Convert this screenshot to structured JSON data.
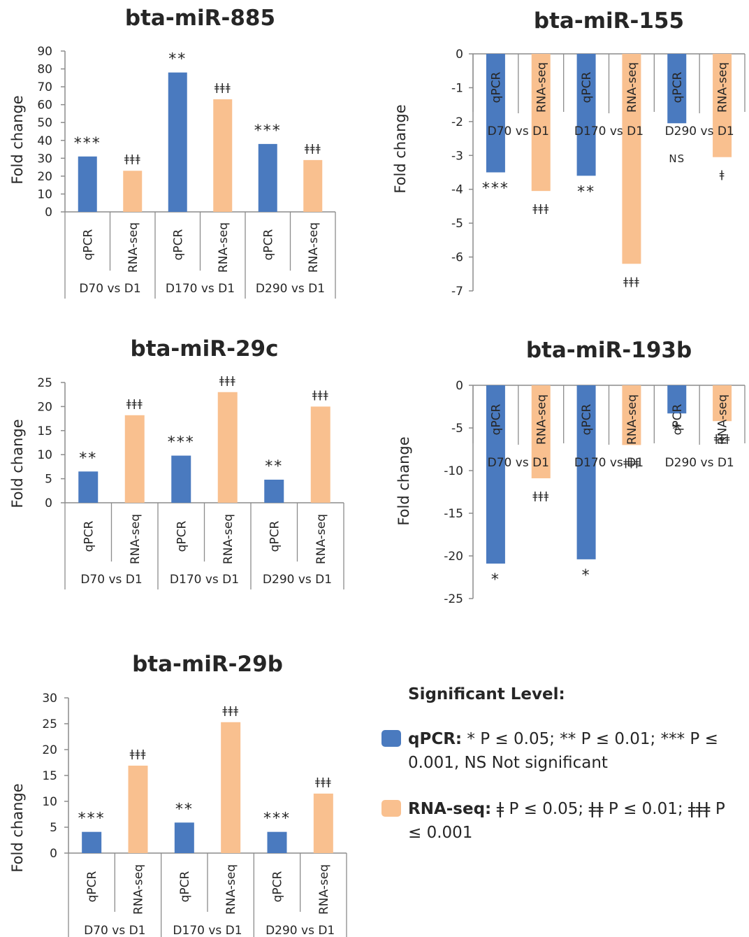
{
  "colors": {
    "qpcr": "#4a7abf",
    "rnaseq": "#f9c08f",
    "axis": "#8c8c8c",
    "text": "#262626"
  },
  "chart_data": [
    {
      "type": "bar",
      "title": "bta-miR-885",
      "ylabel": "Fold change",
      "ylim": [
        0,
        90
      ],
      "yticks": [
        0,
        10,
        20,
        30,
        40,
        50,
        60,
        70,
        80,
        90
      ],
      "groups": [
        "D70 vs D1",
        "D170 vs D1",
        "D290 vs D1"
      ],
      "series": [
        {
          "name": "qPCR",
          "values": [
            31,
            78,
            38
          ],
          "significance": [
            "***",
            "**",
            "***"
          ]
        },
        {
          "name": "RNA-seq",
          "values": [
            23,
            63,
            29
          ],
          "significance": [
            "ǂǂǂ",
            "ǂǂǂ",
            "ǂǂǂ"
          ]
        }
      ]
    },
    {
      "type": "bar",
      "title": "bta-miR-155",
      "ylabel": "Fold change",
      "ylim": [
        -7,
        0
      ],
      "yticks": [
        0,
        -1,
        -2,
        -3,
        -4,
        -5,
        -6,
        -7
      ],
      "groups": [
        "D70 vs D1",
        "D170 vs D1",
        "D290 vs D1"
      ],
      "series": [
        {
          "name": "qPCR",
          "values": [
            -3.5,
            -3.6,
            -2.05
          ],
          "significance": [
            "***",
            "**",
            "NS"
          ]
        },
        {
          "name": "RNA-seq",
          "values": [
            -4.05,
            -6.2,
            -3.05
          ],
          "significance": [
            "ǂǂǂ",
            "ǂǂǂ",
            "ǂ"
          ]
        }
      ]
    },
    {
      "type": "bar",
      "title": "bta-miR-29c",
      "ylabel": "Fold change",
      "ylim": [
        0,
        25
      ],
      "yticks": [
        0,
        5,
        10,
        15,
        20,
        25
      ],
      "groups": [
        "D70 vs D1",
        "D170 vs D1",
        "D290 vs D1"
      ],
      "series": [
        {
          "name": "qPCR",
          "values": [
            6.5,
            9.8,
            4.8
          ],
          "significance": [
            "**",
            "***",
            "**"
          ]
        },
        {
          "name": "RNA-seq",
          "values": [
            18.2,
            23,
            20
          ],
          "significance": [
            "ǂǂǂ",
            "ǂǂǂ",
            "ǂǂǂ"
          ]
        }
      ]
    },
    {
      "type": "bar",
      "title": "bta-miR-193b",
      "ylabel": "Fold change",
      "ylim": [
        -25,
        0
      ],
      "yticks": [
        0,
        -5,
        -10,
        -15,
        -20,
        -25
      ],
      "groups": [
        "D70 vs D1",
        "D170 vs D1",
        "D290 vs D1"
      ],
      "series": [
        {
          "name": "qPCR",
          "values": [
            -20.9,
            -20.4,
            -3.3
          ],
          "significance": [
            "*",
            "*",
            "*"
          ]
        },
        {
          "name": "RNA-seq",
          "values": [
            -10.9,
            -7.0,
            -4.2
          ],
          "significance": [
            "ǂǂǂ",
            "ǂǂǂ",
            "ǂǂǂ"
          ]
        }
      ]
    },
    {
      "type": "bar",
      "title": "bta-miR-29b",
      "ylabel": "Fold change",
      "ylim": [
        0,
        30
      ],
      "yticks": [
        0,
        5,
        10,
        15,
        20,
        25,
        30
      ],
      "groups": [
        "D70 vs D1",
        "D170 vs D1",
        "D290 vs D1"
      ],
      "series": [
        {
          "name": "qPCR",
          "values": [
            4.1,
            5.9,
            4.1
          ],
          "significance": [
            "***",
            "**",
            "***"
          ]
        },
        {
          "name": "RNA-seq",
          "values": [
            16.9,
            25.3,
            11.5
          ],
          "significance": [
            "ǂǂǂ",
            "ǂǂǂ",
            "ǂǂǂ"
          ]
        }
      ]
    }
  ],
  "legend": {
    "title": "Significant Level:",
    "qpcr_label": "qPCR:",
    "qpcr_text": " * P ≤ 0.05; **  P ≤ 0.01; *** P ≤ 0.001, NS Not significant",
    "rnaseq_label": "RNA-seq:",
    "rnaseq_text": " ǂ P ≤ 0.05; ǂǂ P ≤ 0.01; ǂǂǂ  P ≤ 0.001"
  }
}
